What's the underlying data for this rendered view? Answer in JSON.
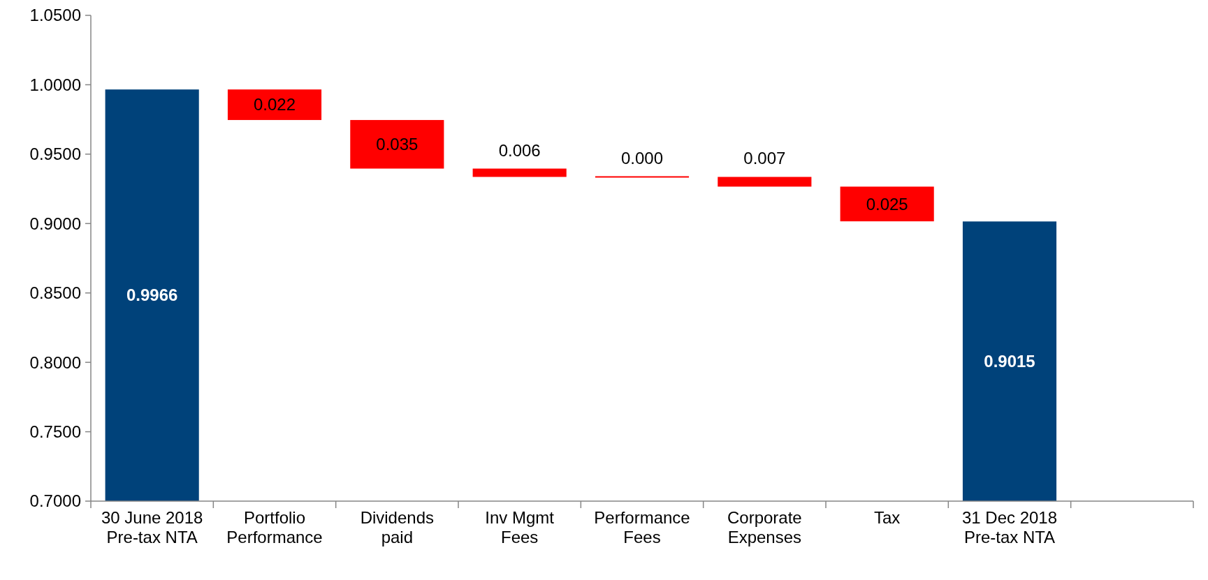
{
  "chart_data": {
    "type": "bar",
    "categories": [
      "30 June 2018 Pre-tax NTA",
      "Portfolio Performance",
      "Dividends paid",
      "Inv Mgmt Fees",
      "Performance Fees",
      "Corporate Expenses",
      "Tax",
      "31 Dec 2018 Pre-tax NTA",
      null
    ],
    "values": [
      0.9966,
      0.022,
      0.035,
      0.006,
      0,
      0.007,
      0.025,
      0.9015,
      null
    ],
    "base": [
      null,
      0.9746,
      0.9396,
      0.9336,
      0.9336,
      0.9266,
      0.9016,
      null,
      null
    ],
    "colors": [
      "#00427a",
      "#ff0000",
      "#ff0000",
      "#ff0000",
      "#ff0000",
      "#ff0000",
      "#ff0000",
      "#00427a",
      null
    ],
    "value_labels": [
      "0.9966",
      "0.022",
      "0.035",
      "0.006",
      "0.000",
      "0.007",
      "0.025",
      "0.9015",
      null
    ],
    "ylim": [
      0.7,
      1.05
    ],
    "yticks": [
      {
        "value": 0.7,
        "label": "0.7000"
      },
      {
        "value": 0.75,
        "label": "0.7500"
      },
      {
        "value": 0.8,
        "label": "0.8000"
      },
      {
        "value": 0.85,
        "label": "0.8500"
      },
      {
        "value": 0.9,
        "label": "0.9000"
      },
      {
        "value": 0.95,
        "label": "0.9500"
      },
      {
        "value": 1.0,
        "label": "1.0000"
      },
      {
        "value": 1.05,
        "label": "1.0500"
      }
    ],
    "grid": false
  }
}
